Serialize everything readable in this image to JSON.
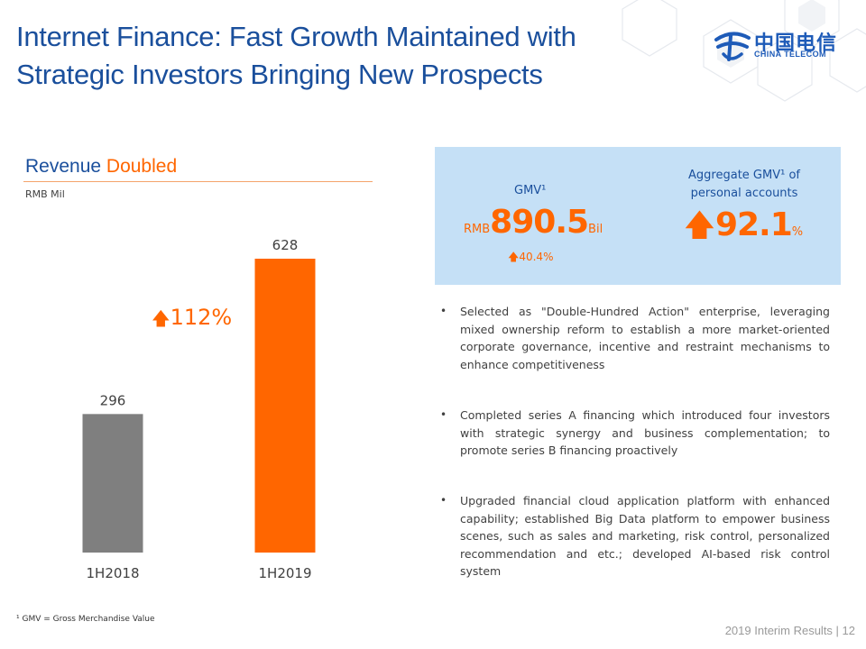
{
  "header": {
    "title_line1": "Internet Finance: Fast Growth Maintained with",
    "title_line2": "Strategic Investors Bringing New Prospects",
    "logo_cn": "中国电信",
    "logo_en": "CHINA TELECOM"
  },
  "left_panel": {
    "section_title_part1": "Revenue",
    "section_title_part2": "Doubled",
    "unit": "RMB Mil",
    "growth_arrow": "🡅",
    "growth_label": "112%"
  },
  "chart_data": {
    "type": "bar",
    "categories": [
      "1H2018",
      "1H2019"
    ],
    "values": [
      296,
      628
    ],
    "ylim": [
      0,
      680
    ],
    "colors": [
      "#7f7f7f",
      "#ff6600"
    ],
    "data_labels": [
      "296",
      "628"
    ]
  },
  "kpis": {
    "gmv": {
      "label": "GMV¹",
      "prefix": "RMB",
      "value": "890.5",
      "suffix": "Bil",
      "sub_arrow": "🡅",
      "sub_value": "40.4%"
    },
    "aggregate": {
      "label_line1": "Aggregate GMV¹ of",
      "label_line2": "personal accounts",
      "arrow": "🡅",
      "value": "92.1",
      "suffix": "%"
    }
  },
  "bullets": [
    {
      "marker": "•",
      "text": "Selected as \"Double-Hundred Action\" enterprise, leveraging mixed ownership reform to establish a more market-oriented corporate governance, incentive and restraint mechanisms to enhance competitiveness"
    },
    {
      "marker": "•",
      "text": "Completed series A financing which introduced four investors with strategic synergy and business complementation; to promote series B financing proactively"
    },
    {
      "marker": "•",
      "text": "Upgraded financial cloud application platform with enhanced capability; established Big Data platform to empower business scenes, such as sales and marketing, risk control, personalized recommendation and etc.; developed AI-based risk control system"
    }
  ],
  "footnote": "¹ GMV = Gross Merchandise Value",
  "footer": "2019 Interim Results | 12",
  "colors": {
    "title_blue": "#1a4f9c",
    "accent_orange": "#ff6600",
    "kpi_box": "#c5e0f6",
    "bar_grey": "#7f7f7f"
  }
}
